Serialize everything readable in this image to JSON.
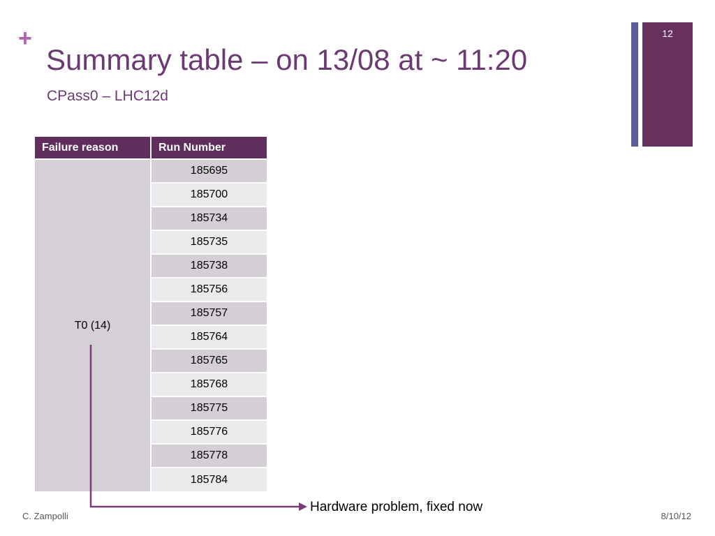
{
  "slide": {
    "page_number": "12",
    "plus_symbol": "+",
    "title": "Summary table – on 13/08 at ~ 11:20",
    "subtitle": "CPass0 – LHC12d",
    "accent_color": "#67305f",
    "secondary_color": "#5e5b99"
  },
  "table": {
    "headers": [
      "Failure reason",
      "Run Number"
    ],
    "reason": "T0 (14)",
    "runs": [
      "185695",
      "185700",
      "185734",
      "185735",
      "185738",
      "185756",
      "185757",
      "185764",
      "185765",
      "185768",
      "185775",
      "185776",
      "185778",
      "185784"
    ]
  },
  "annotation": {
    "text": "Hardware problem, fixed now"
  },
  "footer": {
    "author": "C. Zampolli",
    "date": "8/10/12"
  }
}
